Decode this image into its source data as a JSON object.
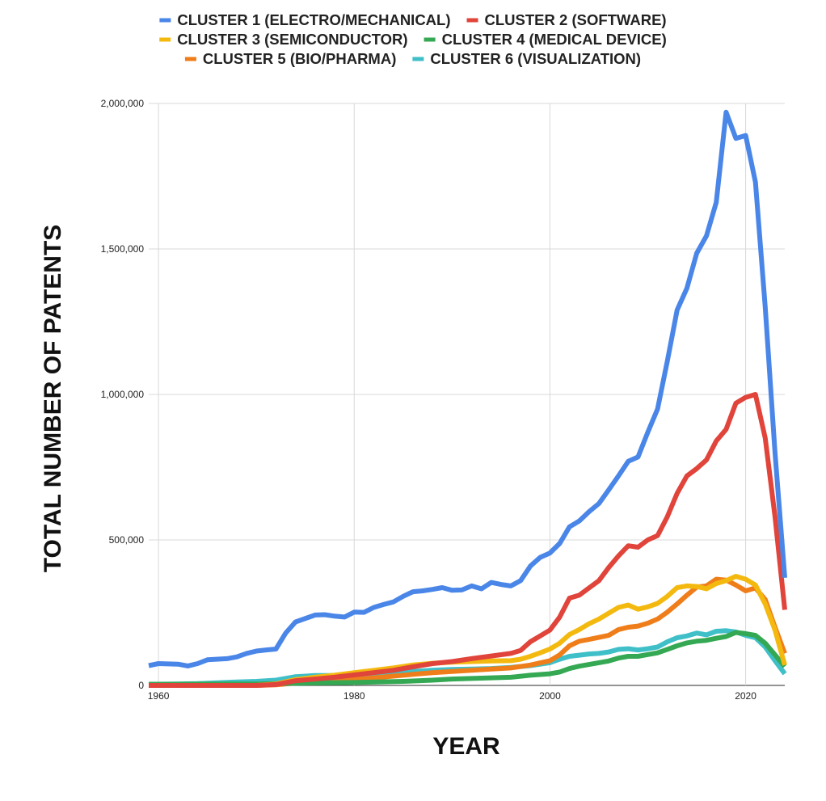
{
  "chart_data": {
    "type": "line",
    "xlabel": "YEAR",
    "ylabel": "TOTAL NUMBER OF PATENTS",
    "xlim": [
      1959,
      2024
    ],
    "ylim": [
      0,
      2000000
    ],
    "x_ticks": [
      {
        "value": 1960,
        "label": "1960"
      },
      {
        "value": 1980,
        "label": "1980"
      },
      {
        "value": 2000,
        "label": "2000"
      },
      {
        "value": 2020,
        "label": "2020"
      }
    ],
    "y_ticks": [
      {
        "value": 0,
        "label": "0"
      },
      {
        "value": 500000,
        "label": "500,000"
      },
      {
        "value": 1000000,
        "label": "1,000,000"
      },
      {
        "value": 1500000,
        "label": "1,500,000"
      },
      {
        "value": 2000000,
        "label": "2,000,000"
      }
    ],
    "grid": true,
    "legend_position": "top",
    "series": [
      {
        "name": "CLUSTER 1 (ELECTRO/MECHANICAL)",
        "color": "#4a86e8",
        "points": [
          [
            1959,
            68000
          ],
          [
            1960,
            75000
          ],
          [
            1962,
            73000
          ],
          [
            1963,
            67000
          ],
          [
            1964,
            75000
          ],
          [
            1965,
            88000
          ],
          [
            1967,
            92000
          ],
          [
            1968,
            98000
          ],
          [
            1969,
            110000
          ],
          [
            1970,
            118000
          ],
          [
            1971,
            122000
          ],
          [
            1972,
            125000
          ],
          [
            1973,
            180000
          ],
          [
            1974,
            218000
          ],
          [
            1975,
            230000
          ],
          [
            1976,
            242000
          ],
          [
            1977,
            243000
          ],
          [
            1978,
            238000
          ],
          [
            1979,
            235000
          ],
          [
            1980,
            252000
          ],
          [
            1981,
            251000
          ],
          [
            1982,
            268000
          ],
          [
            1983,
            278000
          ],
          [
            1984,
            287000
          ],
          [
            1985,
            306000
          ],
          [
            1986,
            322000
          ],
          [
            1987,
            325000
          ],
          [
            1988,
            330000
          ],
          [
            1989,
            336000
          ],
          [
            1990,
            327000
          ],
          [
            1991,
            328000
          ],
          [
            1992,
            342000
          ],
          [
            1993,
            332000
          ],
          [
            1994,
            354000
          ],
          [
            1995,
            347000
          ],
          [
            1996,
            342000
          ],
          [
            1997,
            360000
          ],
          [
            1998,
            410000
          ],
          [
            1999,
            440000
          ],
          [
            2000,
            455000
          ],
          [
            2001,
            488000
          ],
          [
            2002,
            545000
          ],
          [
            2003,
            565000
          ],
          [
            2004,
            597000
          ],
          [
            2005,
            625000
          ],
          [
            2006,
            672000
          ],
          [
            2007,
            720000
          ],
          [
            2008,
            770000
          ],
          [
            2009,
            785000
          ],
          [
            2010,
            870000
          ],
          [
            2011,
            950000
          ],
          [
            2012,
            1115000
          ],
          [
            2013,
            1290000
          ],
          [
            2014,
            1365000
          ],
          [
            2015,
            1485000
          ],
          [
            2016,
            1545000
          ],
          [
            2017,
            1660000
          ],
          [
            2018,
            1970000
          ],
          [
            2019,
            1880000
          ],
          [
            2020,
            1890000
          ],
          [
            2021,
            1730000
          ],
          [
            2022,
            1300000
          ],
          [
            2023,
            800000
          ],
          [
            2024,
            370000
          ]
        ]
      },
      {
        "name": "CLUSTER 2 (SOFTWARE)",
        "color": "#e0443a",
        "points": [
          [
            1959,
            0
          ],
          [
            1970,
            0
          ],
          [
            1972,
            3000
          ],
          [
            1974,
            16000
          ],
          [
            1976,
            22000
          ],
          [
            1978,
            28000
          ],
          [
            1980,
            36000
          ],
          [
            1982,
            44000
          ],
          [
            1984,
            52000
          ],
          [
            1986,
            64000
          ],
          [
            1988,
            75000
          ],
          [
            1990,
            82000
          ],
          [
            1992,
            92000
          ],
          [
            1994,
            101000
          ],
          [
            1996,
            110000
          ],
          [
            1997,
            120000
          ],
          [
            1998,
            150000
          ],
          [
            1999,
            170000
          ],
          [
            2000,
            190000
          ],
          [
            2001,
            235000
          ],
          [
            2002,
            300000
          ],
          [
            2003,
            310000
          ],
          [
            2004,
            335000
          ],
          [
            2005,
            360000
          ],
          [
            2006,
            405000
          ],
          [
            2007,
            445000
          ],
          [
            2008,
            480000
          ],
          [
            2009,
            475000
          ],
          [
            2010,
            500000
          ],
          [
            2011,
            515000
          ],
          [
            2012,
            580000
          ],
          [
            2013,
            660000
          ],
          [
            2014,
            720000
          ],
          [
            2015,
            745000
          ],
          [
            2016,
            775000
          ],
          [
            2017,
            840000
          ],
          [
            2018,
            880000
          ],
          [
            2019,
            970000
          ],
          [
            2020,
            990000
          ],
          [
            2021,
            1000000
          ],
          [
            2022,
            850000
          ],
          [
            2023,
            580000
          ],
          [
            2024,
            260000
          ]
        ]
      },
      {
        "name": "CLUSTER 3 (SEMICONDUCTOR)",
        "color": "#f4b90f",
        "points": [
          [
            1959,
            0
          ],
          [
            1970,
            0
          ],
          [
            1972,
            5000
          ],
          [
            1974,
            20000
          ],
          [
            1976,
            28000
          ],
          [
            1978,
            35000
          ],
          [
            1980,
            44000
          ],
          [
            1982,
            52000
          ],
          [
            1984,
            60000
          ],
          [
            1986,
            70000
          ],
          [
            1988,
            76000
          ],
          [
            1990,
            80000
          ],
          [
            1992,
            82000
          ],
          [
            1994,
            84000
          ],
          [
            1996,
            85000
          ],
          [
            1997,
            90000
          ],
          [
            1998,
            100000
          ],
          [
            1999,
            112000
          ],
          [
            2000,
            125000
          ],
          [
            2001,
            145000
          ],
          [
            2002,
            175000
          ],
          [
            2003,
            192000
          ],
          [
            2004,
            212000
          ],
          [
            2005,
            228000
          ],
          [
            2006,
            248000
          ],
          [
            2007,
            268000
          ],
          [
            2008,
            276000
          ],
          [
            2009,
            262000
          ],
          [
            2010,
            270000
          ],
          [
            2011,
            282000
          ],
          [
            2012,
            306000
          ],
          [
            2013,
            336000
          ],
          [
            2014,
            342000
          ],
          [
            2015,
            340000
          ],
          [
            2016,
            332000
          ],
          [
            2017,
            350000
          ],
          [
            2018,
            360000
          ],
          [
            2019,
            375000
          ],
          [
            2020,
            365000
          ],
          [
            2021,
            345000
          ],
          [
            2022,
            280000
          ],
          [
            2023,
            190000
          ],
          [
            2024,
            70000
          ]
        ]
      },
      {
        "name": "CLUSTER 4 (MEDICAL DEVICE)",
        "color": "#34a853",
        "points": [
          [
            1959,
            4000
          ],
          [
            1970,
            5000
          ],
          [
            1975,
            8000
          ],
          [
            1980,
            10000
          ],
          [
            1985,
            14000
          ],
          [
            1988,
            18000
          ],
          [
            1990,
            22000
          ],
          [
            1992,
            24000
          ],
          [
            1994,
            26000
          ],
          [
            1996,
            28000
          ],
          [
            1998,
            35000
          ],
          [
            2000,
            40000
          ],
          [
            2001,
            46000
          ],
          [
            2002,
            58000
          ],
          [
            2003,
            66000
          ],
          [
            2004,
            72000
          ],
          [
            2005,
            78000
          ],
          [
            2006,
            84000
          ],
          [
            2007,
            94000
          ],
          [
            2008,
            100000
          ],
          [
            2009,
            100000
          ],
          [
            2010,
            106000
          ],
          [
            2011,
            112000
          ],
          [
            2012,
            124000
          ],
          [
            2013,
            136000
          ],
          [
            2014,
            146000
          ],
          [
            2015,
            152000
          ],
          [
            2016,
            155000
          ],
          [
            2017,
            162000
          ],
          [
            2018,
            168000
          ],
          [
            2019,
            182000
          ],
          [
            2020,
            178000
          ],
          [
            2021,
            172000
          ],
          [
            2022,
            145000
          ],
          [
            2023,
            105000
          ],
          [
            2024,
            65000
          ]
        ]
      },
      {
        "name": "CLUSTER 5 (BIO/PHARMA)",
        "color": "#ef7e1a",
        "points": [
          [
            1959,
            0
          ],
          [
            1970,
            0
          ],
          [
            1972,
            2000
          ],
          [
            1974,
            8000
          ],
          [
            1976,
            12000
          ],
          [
            1978,
            16000
          ],
          [
            1980,
            20000
          ],
          [
            1982,
            26000
          ],
          [
            1984,
            32000
          ],
          [
            1986,
            38000
          ],
          [
            1988,
            44000
          ],
          [
            1990,
            48000
          ],
          [
            1992,
            52000
          ],
          [
            1994,
            56000
          ],
          [
            1996,
            60000
          ],
          [
            1998,
            70000
          ],
          [
            2000,
            85000
          ],
          [
            2001,
            105000
          ],
          [
            2002,
            136000
          ],
          [
            2003,
            152000
          ],
          [
            2004,
            158000
          ],
          [
            2005,
            165000
          ],
          [
            2006,
            172000
          ],
          [
            2007,
            192000
          ],
          [
            2008,
            200000
          ],
          [
            2009,
            204000
          ],
          [
            2010,
            214000
          ],
          [
            2011,
            228000
          ],
          [
            2012,
            252000
          ],
          [
            2013,
            280000
          ],
          [
            2014,
            310000
          ],
          [
            2015,
            338000
          ],
          [
            2016,
            342000
          ],
          [
            2017,
            365000
          ],
          [
            2018,
            362000
          ],
          [
            2019,
            345000
          ],
          [
            2020,
            325000
          ],
          [
            2021,
            335000
          ],
          [
            2022,
            295000
          ],
          [
            2023,
            200000
          ],
          [
            2024,
            110000
          ]
        ]
      },
      {
        "name": "CLUSTER 6 (VISUALIZATION)",
        "color": "#3fbfc8",
        "points": [
          [
            1959,
            4000
          ],
          [
            1962,
            5000
          ],
          [
            1964,
            6000
          ],
          [
            1966,
            9000
          ],
          [
            1968,
            12000
          ],
          [
            1970,
            14000
          ],
          [
            1972,
            18000
          ],
          [
            1974,
            30000
          ],
          [
            1976,
            34000
          ],
          [
            1978,
            34000
          ],
          [
            1980,
            36000
          ],
          [
            1982,
            38000
          ],
          [
            1984,
            42000
          ],
          [
            1986,
            48000
          ],
          [
            1988,
            52000
          ],
          [
            1990,
            55000
          ],
          [
            1992,
            56000
          ],
          [
            1994,
            58000
          ],
          [
            1996,
            62000
          ],
          [
            1998,
            68000
          ],
          [
            2000,
            78000
          ],
          [
            2001,
            90000
          ],
          [
            2002,
            100000
          ],
          [
            2003,
            104000
          ],
          [
            2004,
            108000
          ],
          [
            2005,
            110000
          ],
          [
            2006,
            115000
          ],
          [
            2007,
            124000
          ],
          [
            2008,
            126000
          ],
          [
            2009,
            122000
          ],
          [
            2010,
            126000
          ],
          [
            2011,
            132000
          ],
          [
            2012,
            150000
          ],
          [
            2013,
            164000
          ],
          [
            2014,
            170000
          ],
          [
            2015,
            180000
          ],
          [
            2016,
            174000
          ],
          [
            2017,
            186000
          ],
          [
            2018,
            188000
          ],
          [
            2019,
            184000
          ],
          [
            2020,
            172000
          ],
          [
            2021,
            164000
          ],
          [
            2022,
            132000
          ],
          [
            2023,
            85000
          ],
          [
            2024,
            40000
          ]
        ]
      }
    ]
  }
}
